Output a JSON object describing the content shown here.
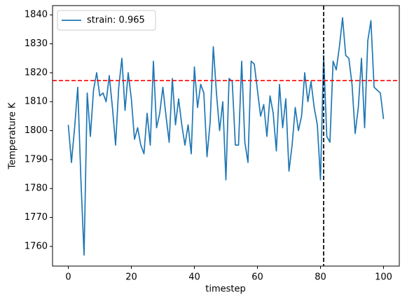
{
  "chart_data": {
    "type": "line",
    "x": [
      0,
      1,
      2,
      3,
      4,
      5,
      6,
      7,
      8,
      9,
      10,
      11,
      12,
      13,
      14,
      15,
      16,
      17,
      18,
      19,
      20,
      21,
      22,
      23,
      24,
      25,
      26,
      27,
      28,
      29,
      30,
      31,
      32,
      33,
      34,
      35,
      36,
      37,
      38,
      39,
      40,
      41,
      42,
      43,
      44,
      45,
      46,
      47,
      48,
      49,
      50,
      51,
      52,
      53,
      54,
      55,
      56,
      57,
      58,
      59,
      60,
      61,
      62,
      63,
      64,
      65,
      66,
      67,
      68,
      69,
      70,
      71,
      72,
      73,
      74,
      75,
      76,
      77,
      78,
      79,
      80,
      81,
      82,
      83,
      84,
      85,
      86,
      87,
      88,
      89,
      90,
      91,
      92,
      93,
      94,
      95,
      96,
      97,
      98,
      99,
      100
    ],
    "series": [
      {
        "name": "strain: 0.965",
        "color": "#1f77b4",
        "values": [
          1802,
          1789,
          1801,
          1815,
          1783,
          1757,
          1813,
          1798,
          1814,
          1820,
          1812,
          1813,
          1810,
          1819,
          1808,
          1795,
          1815,
          1825,
          1807,
          1820,
          1811,
          1797,
          1801,
          1795,
          1792,
          1806,
          1795,
          1824,
          1801,
          1806,
          1815,
          1805,
          1796,
          1818,
          1802,
          1811,
          1802,
          1795,
          1802,
          1792,
          1822,
          1808,
          1816,
          1813,
          1791,
          1803,
          1829,
          1813,
          1800,
          1810,
          1783,
          1818,
          1817,
          1795,
          1795,
          1824,
          1796,
          1789,
          1824,
          1823,
          1814,
          1805,
          1809,
          1798,
          1812,
          1806,
          1793,
          1816,
          1801,
          1811,
          1786,
          1795,
          1808,
          1800,
          1805,
          1820,
          1810,
          1817,
          1808,
          1802,
          1783,
          1826,
          1798,
          1796,
          1824,
          1821,
          1829,
          1839,
          1826,
          1825,
          1816,
          1799,
          1808,
          1825,
          1801,
          1831,
          1838,
          1815,
          1814,
          1813,
          1804
        ]
      }
    ],
    "reference_lines": [
      {
        "axis": "y",
        "value": 1817.3,
        "color": "#ff0000"
      },
      {
        "axis": "x",
        "value": 81,
        "color": "#000000"
      }
    ],
    "x_label": "timestep",
    "y_label": "Temperature K",
    "xlim": [
      -5,
      105
    ],
    "ylim": [
      1753.2,
      1843.2
    ],
    "xticks": [
      0,
      20,
      40,
      60,
      80,
      100
    ],
    "yticks": [
      1760,
      1770,
      1780,
      1790,
      1800,
      1810,
      1820,
      1830,
      1840
    ],
    "legend": "upper left"
  }
}
